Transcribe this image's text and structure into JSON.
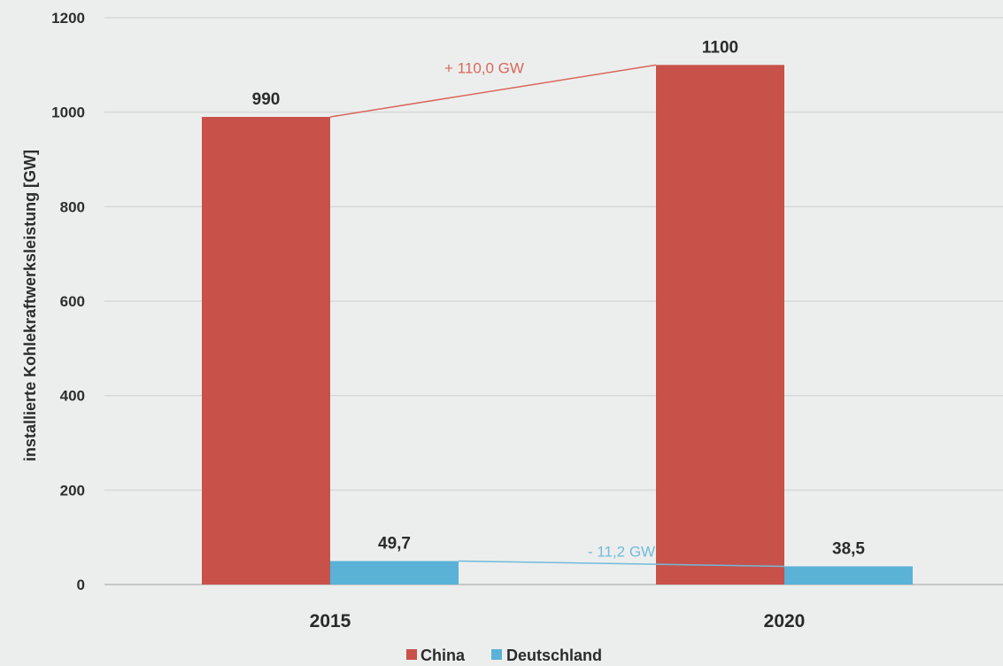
{
  "chart_data": {
    "type": "bar",
    "title": "",
    "xlabel": "",
    "ylabel": "installierte Kohlekraftwerksleistung [GW]",
    "ylim": [
      0,
      1200
    ],
    "yticks": [
      0,
      200,
      400,
      600,
      800,
      1000,
      1200
    ],
    "grid": true,
    "legend_position": "bottom",
    "categories": [
      "2015",
      "2020"
    ],
    "series": [
      {
        "name": "China",
        "values": [
          990,
          1100
        ],
        "labels": [
          "990",
          "1100"
        ],
        "color": "#c8514a"
      },
      {
        "name": "Deutschland",
        "values": [
          49.7,
          38.5
        ],
        "labels": [
          "49,7",
          "38,5"
        ],
        "color": "#5ab2d6"
      }
    ],
    "annotations": [
      {
        "text": "+ 110,0 GW",
        "series": "China",
        "color": "#d9675c"
      },
      {
        "text": "- 11,2 GW",
        "series": "Deutschland",
        "color": "#6fbbdb"
      }
    ]
  }
}
